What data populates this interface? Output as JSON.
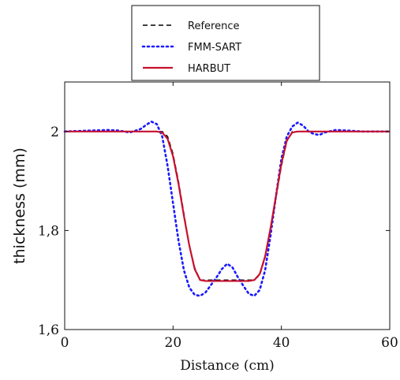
{
  "chart_data": {
    "type": "line",
    "xlabel": "Distance (cm)",
    "ylabel": "thickness (mm)",
    "xlim": [
      0,
      60
    ],
    "ylim": [
      1.6,
      2.1
    ],
    "xticks": [
      0,
      20,
      40,
      60
    ],
    "xtick_labels": [
      "0",
      "20",
      "40",
      "60"
    ],
    "yticks": [
      1.6,
      1.8,
      2.0
    ],
    "ytick_labels": [
      "1,6",
      "1,8",
      "2"
    ],
    "grid": false,
    "legend_position": "above plot",
    "series": [
      {
        "name": "Reference",
        "color": "#000000",
        "dash": "dashed",
        "x": [
          0,
          18,
          19,
          20,
          21,
          22,
          23,
          24,
          25,
          35,
          36,
          37,
          38,
          39,
          40,
          41,
          42,
          60
        ],
        "y": [
          2.0,
          2.0,
          1.99,
          1.955,
          1.9,
          1.835,
          1.77,
          1.725,
          1.7,
          1.7,
          1.71,
          1.745,
          1.8,
          1.865,
          1.93,
          1.98,
          2.0,
          2.0
        ]
      },
      {
        "name": "FMM-SART",
        "color": "#1a1aff",
        "dash": "dotted",
        "x": [
          0,
          5,
          8,
          10,
          12,
          14,
          15,
          16,
          17,
          18,
          19,
          20,
          21,
          22,
          23,
          24,
          25,
          26,
          27,
          28,
          29,
          30,
          31,
          32,
          33,
          34,
          35,
          36,
          37,
          38,
          39,
          40,
          41,
          42,
          43,
          44,
          45,
          46,
          47,
          48,
          50,
          52,
          55,
          60
        ],
        "y": [
          2.0,
          2.002,
          2.003,
          2.002,
          1.998,
          2.005,
          2.013,
          2.02,
          2.015,
          1.99,
          1.93,
          1.855,
          1.78,
          1.72,
          1.685,
          1.67,
          1.668,
          1.675,
          1.69,
          1.705,
          1.722,
          1.733,
          1.725,
          1.705,
          1.688,
          1.672,
          1.668,
          1.68,
          1.72,
          1.79,
          1.87,
          1.945,
          1.99,
          2.01,
          2.018,
          2.012,
          2.0,
          1.995,
          1.993,
          1.998,
          2.003,
          2.002,
          2.0,
          2.0
        ]
      },
      {
        "name": "HARBUT",
        "color": "#c8102e",
        "dash": "solid",
        "x": [
          0,
          17,
          18,
          19,
          20,
          21,
          22,
          23,
          24,
          25,
          26,
          30,
          34,
          35,
          36,
          37,
          38,
          39,
          40,
          41,
          42,
          43,
          60
        ],
        "y": [
          2.0,
          2.0,
          1.998,
          1.985,
          1.95,
          1.895,
          1.83,
          1.77,
          1.722,
          1.7,
          1.698,
          1.698,
          1.698,
          1.7,
          1.712,
          1.748,
          1.805,
          1.87,
          1.935,
          1.982,
          1.998,
          2.0,
          2.0
        ]
      }
    ]
  }
}
